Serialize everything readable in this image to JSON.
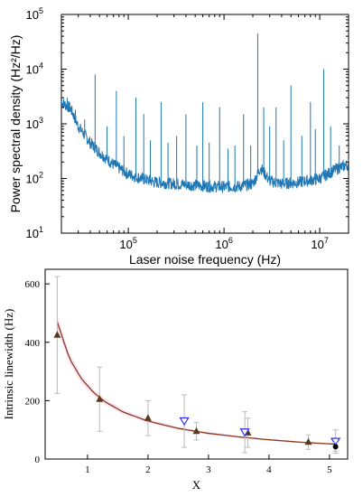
{
  "chart_data": [
    {
      "type": "line",
      "title": "",
      "xlabel": "Laser noise frequency (Hz)",
      "ylabel": "Power spectral density (Hz²/Hz)",
      "xscale": "log",
      "yscale": "log",
      "xlim": [
        20000,
        20000000
      ],
      "ylim": [
        10,
        100000
      ],
      "x_tick_labels": [
        "10^5",
        "10^6",
        "10^7"
      ],
      "x_ticks": [
        100000,
        1000000,
        10000000
      ],
      "y_tick_labels": [
        "10^1",
        "10^2",
        "10^3",
        "10^4",
        "10^5"
      ],
      "y_ticks": [
        10,
        100,
        1000,
        10000,
        100000
      ],
      "grid": false,
      "colors": {
        "series": "#1f77b4"
      },
      "series": [
        {
          "baseline": {
            "x": [
              20000,
              25000,
              30000,
              40000,
              50000,
              70000,
              100000,
              150000,
              200000,
              300000,
              500000,
              700000,
              1000000,
              1500000,
              2000000,
              2300000,
              2400000,
              2600000,
              3000000,
              4000000,
              6000000,
              10000000,
              15000000,
              20000000
            ],
            "y": [
              2500,
              1900,
              900,
              450,
              300,
              180,
              120,
              95,
              85,
              80,
              75,
              72,
              70,
              72,
              80,
              130,
              160,
              130,
              90,
              80,
              85,
              100,
              150,
              180
            ]
          },
          "spikes": {
            "x": [
              23000,
              28000,
              35000,
              45000,
              60000,
              75000,
              90000,
              120000,
              145000,
              170000,
              220000,
              260000,
              320000,
              400000,
              520000,
              600000,
              700000,
              900000,
              1100000,
              1300000,
              1600000,
              1900000,
              2250000,
              2600000,
              3000000,
              3500000,
              4200000,
              5000000,
              6500000,
              8000000,
              9000000,
              11000000,
              13000000,
              16000000
            ],
            "y": [
              3000,
              1800,
              1200,
              8000,
              900,
              4000,
              600,
              3000,
              1500,
              500,
              2500,
              450,
              600,
              1500,
              400,
              2500,
              450,
              2000,
              350,
              400,
              1500,
              400,
              45000,
              2000,
              900,
              2000,
              500,
              5000,
              600,
              2500,
              800,
              10000,
              900,
              400
            ]
          }
        }
      ]
    },
    {
      "type": "scatter",
      "title": "",
      "xlabel": "X",
      "ylabel": "Intrinsic linewidth (Hz)",
      "xlim": [
        0.3,
        5.3
      ],
      "ylim": [
        0,
        650
      ],
      "x_ticks": [
        1,
        2,
        3,
        4,
        5
      ],
      "x_tick_labels": [
        "1",
        "2",
        "3",
        "4",
        "5"
      ],
      "y_ticks": [
        0,
        200,
        400,
        600
      ],
      "y_tick_labels": [
        "0",
        "200",
        "400",
        "600"
      ],
      "grid": false,
      "colors": {
        "fit": "#8b3a1a",
        "triangle_up": "#5a3a1a",
        "triangle_down": "#2a2aee",
        "circle": "#000000",
        "errorbar": "#bbbbbb",
        "band": "#fbe4f4"
      },
      "series": [
        {
          "marker": "triangle-up",
          "x": [
            0.5,
            1.2,
            2.0,
            2.8,
            3.65,
            4.65
          ],
          "y": [
            425,
            205,
            140,
            95,
            90,
            58
          ],
          "error": [
            200,
            110,
            60,
            30,
            50,
            25
          ]
        },
        {
          "marker": "triangle-down-open",
          "x": [
            2.6,
            3.6,
            5.1
          ],
          "y": [
            130,
            92,
            60
          ],
          "error": [
            90,
            70,
            40
          ]
        },
        {
          "marker": "circle",
          "x": [
            5.1
          ],
          "y": [
            42
          ],
          "error": [
            15
          ]
        },
        {
          "marker": "line",
          "x": [
            0.5,
            0.7,
            0.9,
            1.1,
            1.3,
            1.6,
            2.0,
            2.5,
            3.0,
            3.5,
            4.0,
            4.5,
            5.0,
            5.1
          ],
          "y": [
            470,
            345,
            275,
            228,
            195,
            160,
            130,
            105,
            88,
            76,
            66,
            58,
            52,
            51
          ]
        }
      ]
    }
  ]
}
